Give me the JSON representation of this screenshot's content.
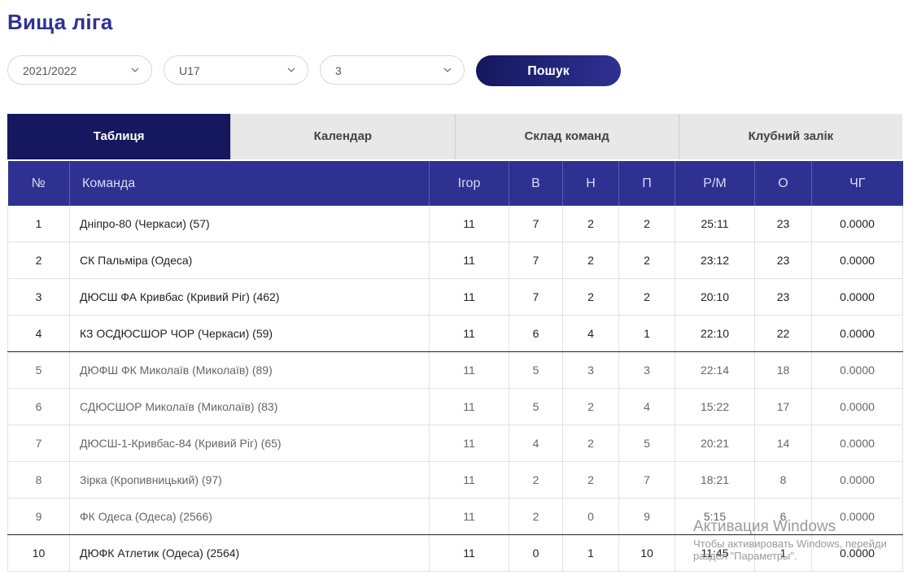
{
  "header": {
    "title": "Вища ліга"
  },
  "filters": {
    "season": "2021/2022",
    "age": "U17",
    "group": "3",
    "search_label": "Пошук"
  },
  "tabs": [
    {
      "label": "Таблиця",
      "active": true
    },
    {
      "label": "Календар",
      "active": false
    },
    {
      "label": "Склад команд",
      "active": false
    },
    {
      "label": "Клубний залік",
      "active": false
    }
  ],
  "table": {
    "headers": [
      "№",
      "Команда",
      "Ігор",
      "В",
      "Н",
      "П",
      "Р/М",
      "О",
      "ЧГ"
    ],
    "rows": [
      {
        "pos": "1",
        "team": "Дніпро-80 (Черкаси) (57)",
        "games": "11",
        "w": "7",
        "d": "2",
        "l": "2",
        "goals": "25:11",
        "pts": "23",
        "fp": "0.0000"
      },
      {
        "pos": "2",
        "team": "СК Пальміра (Одеса)",
        "games": "11",
        "w": "7",
        "d": "2",
        "l": "2",
        "goals": "23:12",
        "pts": "23",
        "fp": "0.0000"
      },
      {
        "pos": "3",
        "team": "ДЮСШ ФА Кривбас (Кривий Ріг) (462)",
        "games": "11",
        "w": "7",
        "d": "2",
        "l": "2",
        "goals": "20:10",
        "pts": "23",
        "fp": "0.0000"
      },
      {
        "pos": "4",
        "team": "КЗ ОСДЮСШОР ЧОР (Черкаси) (59)",
        "games": "11",
        "w": "6",
        "d": "4",
        "l": "1",
        "goals": "22:10",
        "pts": "22",
        "fp": "0.0000"
      },
      {
        "pos": "5",
        "team": "ДЮФШ ФК Миколаїв (Миколаїв) (89)",
        "games": "11",
        "w": "5",
        "d": "3",
        "l": "3",
        "goals": "22:14",
        "pts": "18",
        "fp": "0.0000"
      },
      {
        "pos": "6",
        "team": "СДЮСШОР Миколаїв (Миколаїв) (83)",
        "games": "11",
        "w": "5",
        "d": "2",
        "l": "4",
        "goals": "15:22",
        "pts": "17",
        "fp": "0.0000"
      },
      {
        "pos": "7",
        "team": "ДЮСШ-1-Кривбас-84 (Кривий Ріг) (65)",
        "games": "11",
        "w": "4",
        "d": "2",
        "l": "5",
        "goals": "20:21",
        "pts": "14",
        "fp": "0.0000"
      },
      {
        "pos": "8",
        "team": "Зірка (Кропивницький) (97)",
        "games": "11",
        "w": "2",
        "d": "2",
        "l": "7",
        "goals": "18:21",
        "pts": "8",
        "fp": "0.0000"
      },
      {
        "pos": "9",
        "team": "ФК Одеса (Одеса) (2566)",
        "games": "11",
        "w": "2",
        "d": "0",
        "l": "9",
        "goals": "5:15",
        "pts": "6",
        "fp": "0.0000"
      },
      {
        "pos": "10",
        "team": "ДЮФК Атлетик (Одеса) (2564)",
        "games": "11",
        "w": "0",
        "d": "1",
        "l": "10",
        "goals": "11:45",
        "pts": "1",
        "fp": "0.0000"
      }
    ]
  },
  "watermark": {
    "line1": "Активация Windows",
    "line2": "Чтобы активировать Windows, перейди",
    "line3": "раздел \"Параметры\"."
  },
  "colors": {
    "title": "#2e3192",
    "header_bg": "#2e3192",
    "active_tab": "#15185e",
    "tab_bg": "#e8e8e8"
  }
}
